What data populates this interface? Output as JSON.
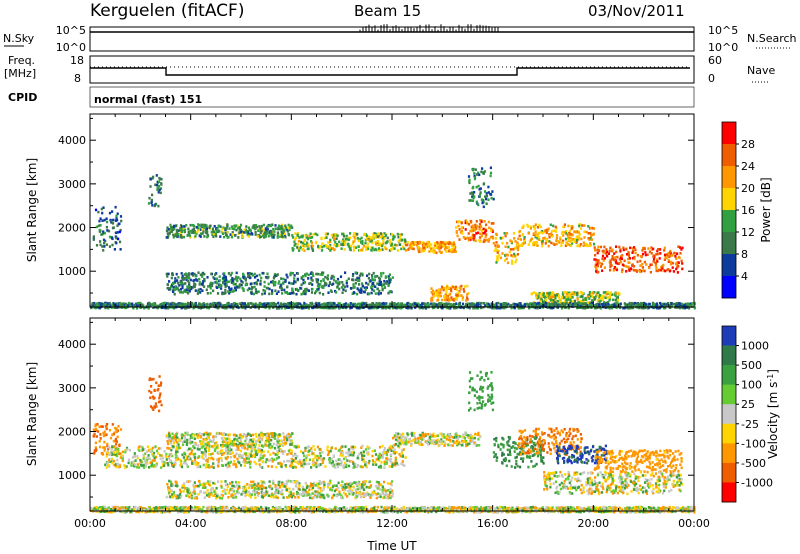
{
  "header": {
    "station": "Kerguelen (fitACF)",
    "beam": "Beam 15",
    "date": "03/Nov/2011"
  },
  "top_panels": {
    "nsky_label": "N.Sky",
    "nsky_scale": [
      "10^5",
      "10^0"
    ],
    "nsearch_label": "N.Search",
    "nsearch_scale": [
      "10^5",
      "10^0"
    ],
    "freq_label": [
      "Freq.",
      "[MHz]"
    ],
    "freq_scale": [
      "18",
      "8"
    ],
    "nave_label": "Nave",
    "nave_scale": [
      "60",
      "0"
    ],
    "cpid_label": "CPID",
    "cpid_value": "normal (fast) 151"
  },
  "chart_data": [
    {
      "type": "heatmap",
      "title": "",
      "xlabel": "Time UT",
      "ylabel": "Slant Range [km]",
      "xlim": [
        0,
        24
      ],
      "ylim": [
        180,
        4600
      ],
      "xticks": [
        "00:00",
        "04:00",
        "08:00",
        "12:00",
        "16:00",
        "20:00",
        "00:00"
      ],
      "yticks": [
        1000,
        2000,
        3000,
        4000
      ],
      "colorbar": {
        "label": "Power [dB]",
        "ticks": [
          "28",
          "24",
          "20",
          "16",
          "12",
          "8",
          "4"
        ],
        "colors": [
          "#ff0000",
          "#f05c00",
          "#ff9800",
          "#ffd400",
          "#30a040",
          "#3a7a48",
          "#0d3c9c",
          "#0000ff"
        ]
      },
      "echo_bands": [
        {
          "t0": 0.1,
          "t1": 1.2,
          "r0": 1500,
          "r1": 2500,
          "value": 6
        },
        {
          "t0": 2.3,
          "t1": 2.8,
          "r0": 2500,
          "r1": 3300,
          "value": 7
        },
        {
          "t0": 3.0,
          "t1": 8.0,
          "r0": 1800,
          "r1": 2100,
          "value": 10
        },
        {
          "t0": 8.0,
          "t1": 12.5,
          "r0": 1500,
          "r1": 1900,
          "value": 14
        },
        {
          "t0": 12.5,
          "t1": 14.5,
          "r0": 1450,
          "r1": 1700,
          "value": 20
        },
        {
          "t0": 14.5,
          "t1": 16.0,
          "r0": 1700,
          "r1": 2200,
          "value": 22
        },
        {
          "t0": 15.0,
          "t1": 16.0,
          "r0": 2500,
          "r1": 3400,
          "value": 8
        },
        {
          "t0": 16.0,
          "t1": 17.0,
          "r0": 1200,
          "r1": 1900,
          "value": 18
        },
        {
          "t0": 17.0,
          "t1": 20.0,
          "r0": 1600,
          "r1": 2100,
          "value": 18
        },
        {
          "t0": 20.0,
          "t1": 23.5,
          "r0": 1000,
          "r1": 1600,
          "value": 24
        },
        {
          "t0": 3.0,
          "t1": 12.0,
          "r0": 500,
          "r1": 1000,
          "value": 8
        },
        {
          "t0": 13.5,
          "t1": 15.0,
          "r0": 350,
          "r1": 700,
          "value": 20
        },
        {
          "t0": 17.5,
          "t1": 21.0,
          "r0": 300,
          "r1": 550,
          "value": 14
        },
        {
          "t0": 0.0,
          "t1": 24.0,
          "r0": 180,
          "r1": 300,
          "value": 8
        }
      ]
    },
    {
      "type": "heatmap",
      "title": "",
      "xlabel": "Time UT",
      "ylabel": "Slant Range [km]",
      "xlim": [
        0,
        24
      ],
      "ylim": [
        180,
        4600
      ],
      "xticks": [
        "00:00",
        "04:00",
        "08:00",
        "12:00",
        "16:00",
        "20:00",
        "00:00"
      ],
      "yticks": [
        1000,
        2000,
        3000,
        4000
      ],
      "colorbar": {
        "label": "Velocity [m s^-1]",
        "ticks": [
          "1000",
          "500",
          "100",
          "25",
          "-25",
          "-100",
          "-500",
          "-1000"
        ],
        "colors": [
          "#1f3cb8",
          "#2f7a48",
          "#3aa040",
          "#66cc33",
          "#c8c8c8",
          "#ffd400",
          "#ff9800",
          "#f05c00",
          "#ff0000"
        ]
      },
      "echo_bands": [
        {
          "t0": 0.1,
          "t1": 1.2,
          "r0": 1500,
          "r1": 2200,
          "value": -300
        },
        {
          "t0": 2.3,
          "t1": 2.8,
          "r0": 2500,
          "r1": 3300,
          "value": -400
        },
        {
          "t0": 3.0,
          "t1": 8.0,
          "r0": 1700,
          "r1": 2000,
          "value": 0
        },
        {
          "t0": 0.5,
          "t1": 12.5,
          "r0": 1200,
          "r1": 1700,
          "value": 0
        },
        {
          "t0": 12.0,
          "t1": 15.5,
          "r0": 1700,
          "r1": 2000,
          "value": 0
        },
        {
          "t0": 15.0,
          "t1": 16.0,
          "r0": 2500,
          "r1": 3400,
          "value": 200
        },
        {
          "t0": 16.0,
          "t1": 18.0,
          "r0": 1200,
          "r1": 1900,
          "value": 300
        },
        {
          "t0": 17.0,
          "t1": 19.5,
          "r0": 1500,
          "r1": 2100,
          "value": -300
        },
        {
          "t0": 18.5,
          "t1": 20.5,
          "r0": 1300,
          "r1": 1700,
          "value": 800
        },
        {
          "t0": 20.0,
          "t1": 23.5,
          "r0": 1100,
          "r1": 1600,
          "value": -150
        },
        {
          "t0": 18.0,
          "t1": 23.5,
          "r0": 600,
          "r1": 1100,
          "value": 0
        },
        {
          "t0": 3.0,
          "t1": 12.0,
          "r0": 500,
          "r1": 900,
          "value": 0
        },
        {
          "t0": 0.0,
          "t1": 24.0,
          "r0": 180,
          "r1": 300,
          "value": 0
        }
      ]
    }
  ]
}
